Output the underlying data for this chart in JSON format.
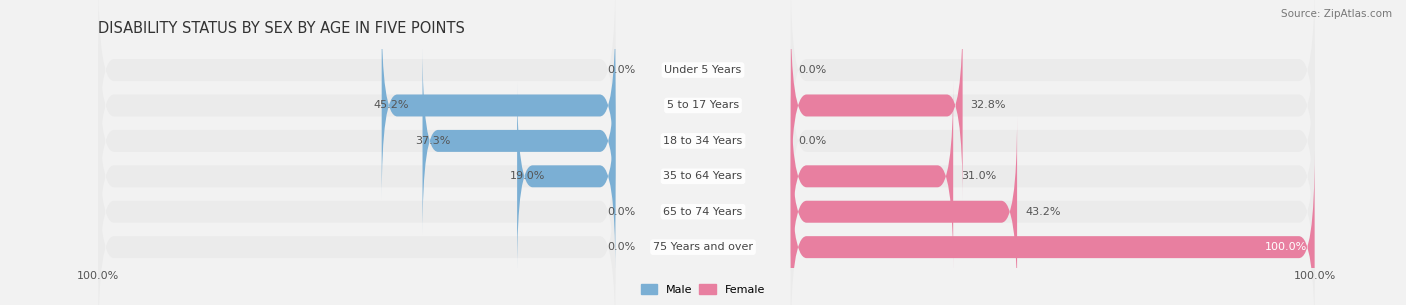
{
  "title": "DISABILITY STATUS BY SEX BY AGE IN FIVE POINTS",
  "source": "Source: ZipAtlas.com",
  "categories": [
    "Under 5 Years",
    "5 to 17 Years",
    "18 to 34 Years",
    "35 to 64 Years",
    "65 to 74 Years",
    "75 Years and over"
  ],
  "male_values": [
    0.0,
    45.2,
    37.3,
    19.0,
    0.0,
    0.0
  ],
  "female_values": [
    0.0,
    32.8,
    0.0,
    31.0,
    43.2,
    100.0
  ],
  "male_color": "#7bafd4",
  "female_color": "#e87fa0",
  "male_label": "Male",
  "female_label": "Female",
  "max_val": 100.0,
  "bg_color": "#f2f2f2",
  "bar_bg_color": "#e2e2e2",
  "row_bg_color": "#ebebeb",
  "title_fontsize": 10.5,
  "label_fontsize": 8.0,
  "value_fontsize": 8.0,
  "source_fontsize": 7.5
}
